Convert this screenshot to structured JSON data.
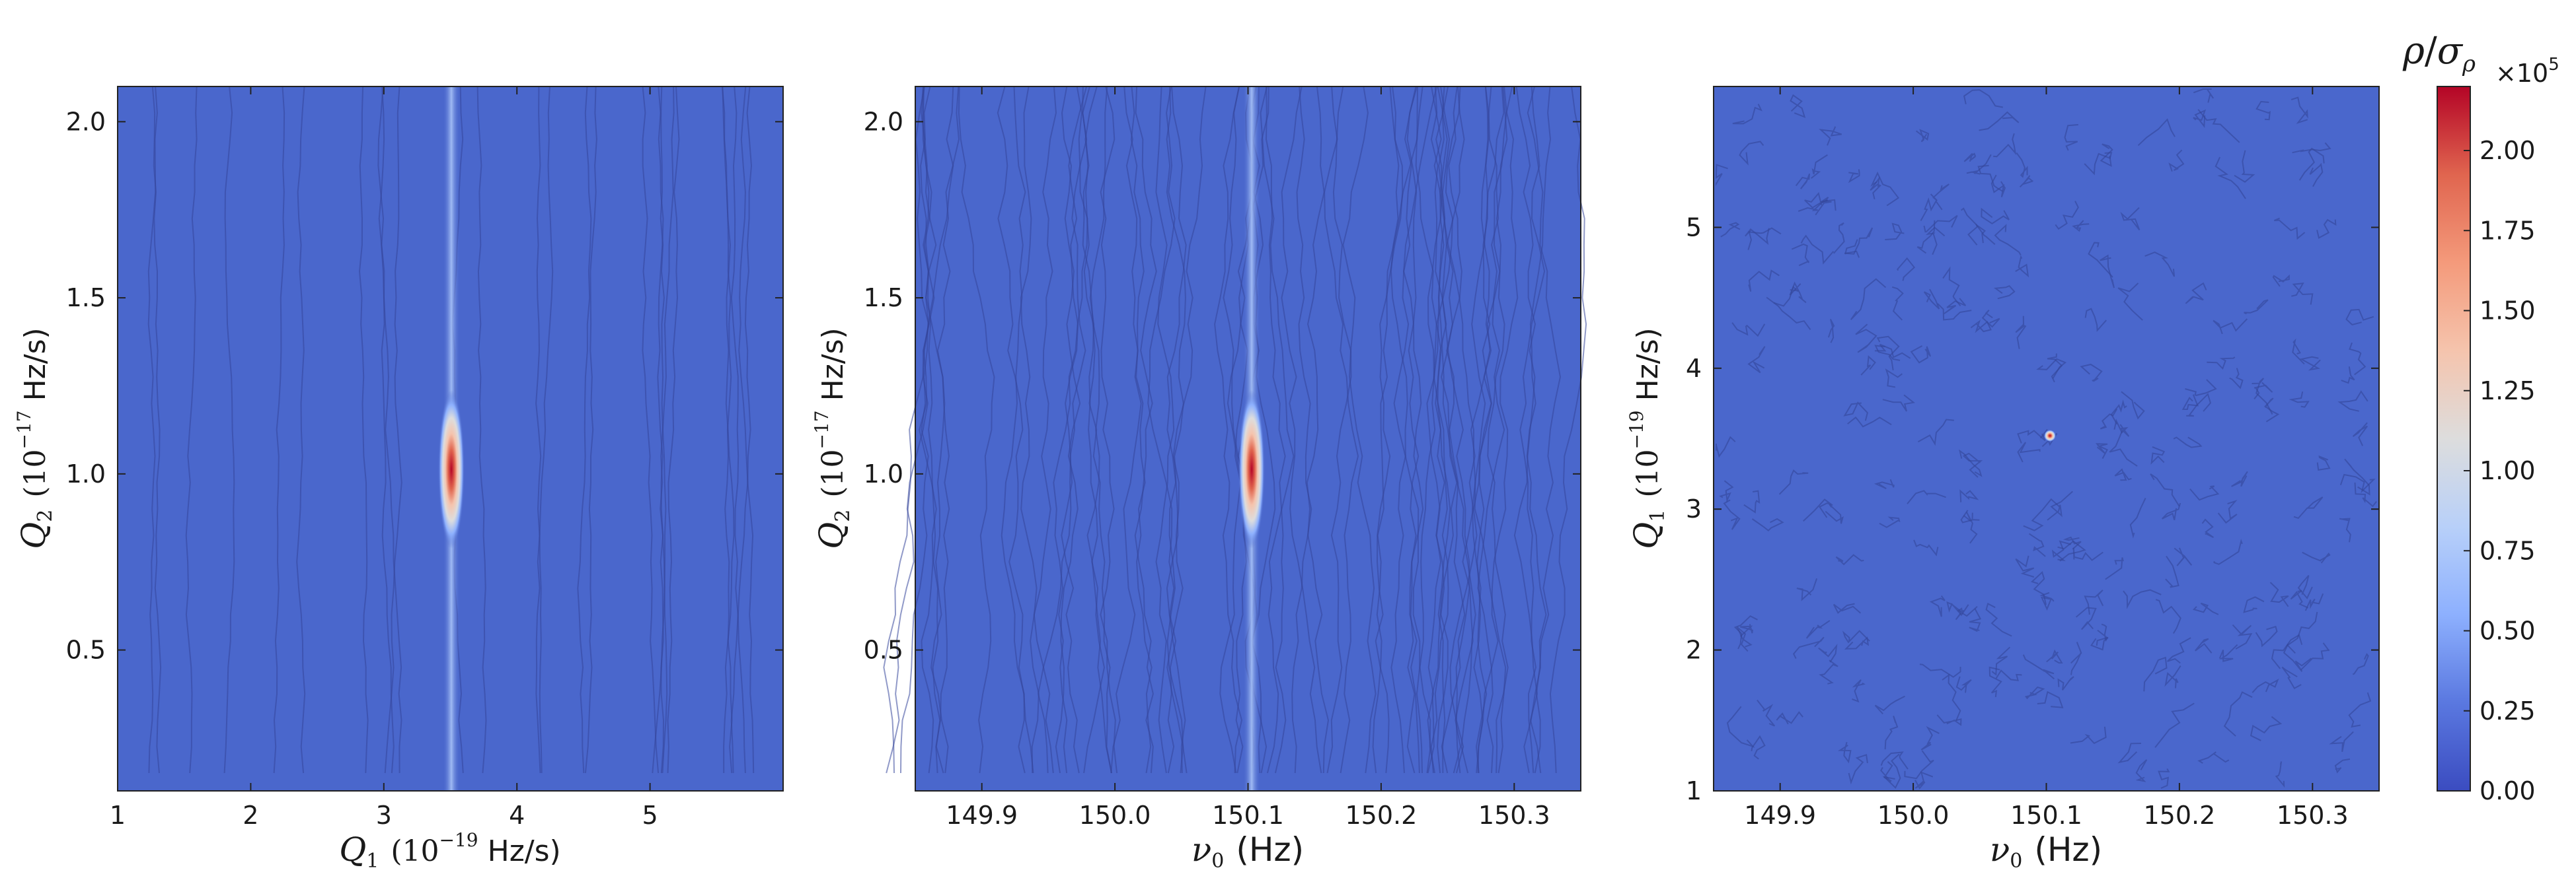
{
  "colors": {
    "background_field": "#4a67cc",
    "contour_line": "#34469a",
    "frame": "#222222",
    "colormap": [
      "#3b4cc0",
      "#5a78e0",
      "#8db0fe",
      "#b8d0f9",
      "#dddddd",
      "#f5c4ad",
      "#f49a7b",
      "#e0654f",
      "#b40426"
    ]
  },
  "chart_data": [
    {
      "type": "heatmap",
      "x": [
        3.5
      ],
      "y": [
        1.0
      ],
      "peak_value": 2.2,
      "xlim": [
        1,
        6
      ],
      "ylim": [
        0.1,
        2.1
      ],
      "xticks": [
        "1",
        "2",
        "3",
        "4",
        "5"
      ],
      "yticks": [
        "0.5",
        "1.0",
        "1.5",
        "2.0"
      ],
      "xlabel": {
        "sym": "Q",
        "sub": "1",
        "pre": "(10",
        "exp": "−19",
        "unit": "Hz/s)"
      },
      "ylabel": {
        "sym": "Q",
        "sub": "2",
        "pre": "(10",
        "exp": "−17",
        "unit": "Hz/s)"
      }
    },
    {
      "type": "heatmap",
      "x": [
        150.1
      ],
      "y": [
        1.0
      ],
      "peak_value": 2.2,
      "xlim": [
        149.85,
        150.35
      ],
      "ylim": [
        0.1,
        2.1
      ],
      "xticks": [
        "149.9",
        "150.0",
        "150.1",
        "150.2",
        "150.3"
      ],
      "yticks": [
        "0.5",
        "1.0",
        "1.5",
        "2.0"
      ],
      "xlabel": {
        "sym": "ν",
        "sub": "0",
        "unit": "(Hz)"
      },
      "ylabel": {
        "sym": "Q",
        "sub": "2",
        "pre": "(10",
        "exp": "−17",
        "unit": "Hz/s)"
      }
    },
    {
      "type": "heatmap",
      "x": [
        150.1
      ],
      "y": [
        3.5
      ],
      "peak_value": 2.2,
      "xlim": [
        149.85,
        150.35
      ],
      "ylim": [
        1,
        6
      ],
      "xticks": [
        "149.9",
        "150.0",
        "150.1",
        "150.2",
        "150.3"
      ],
      "yticks": [
        "1",
        "2",
        "3",
        "4",
        "5"
      ],
      "xlabel": {
        "sym": "ν",
        "sub": "0",
        "unit": "(Hz)"
      },
      "ylabel": {
        "sym": "Q",
        "sub": "1",
        "pre": "(10",
        "exp": "−19",
        "unit": "Hz/s)"
      }
    }
  ],
  "colorbar": {
    "title_num": "ρ",
    "title_den": "σ",
    "title_den_sub": "ρ",
    "scale_base": "×10",
    "scale_exp": "5",
    "range": [
      0,
      2.2
    ],
    "ticks": [
      "0.00",
      "0.25",
      "0.50",
      "0.75",
      "1.00",
      "1.25",
      "1.50",
      "1.75",
      "2.00"
    ]
  }
}
